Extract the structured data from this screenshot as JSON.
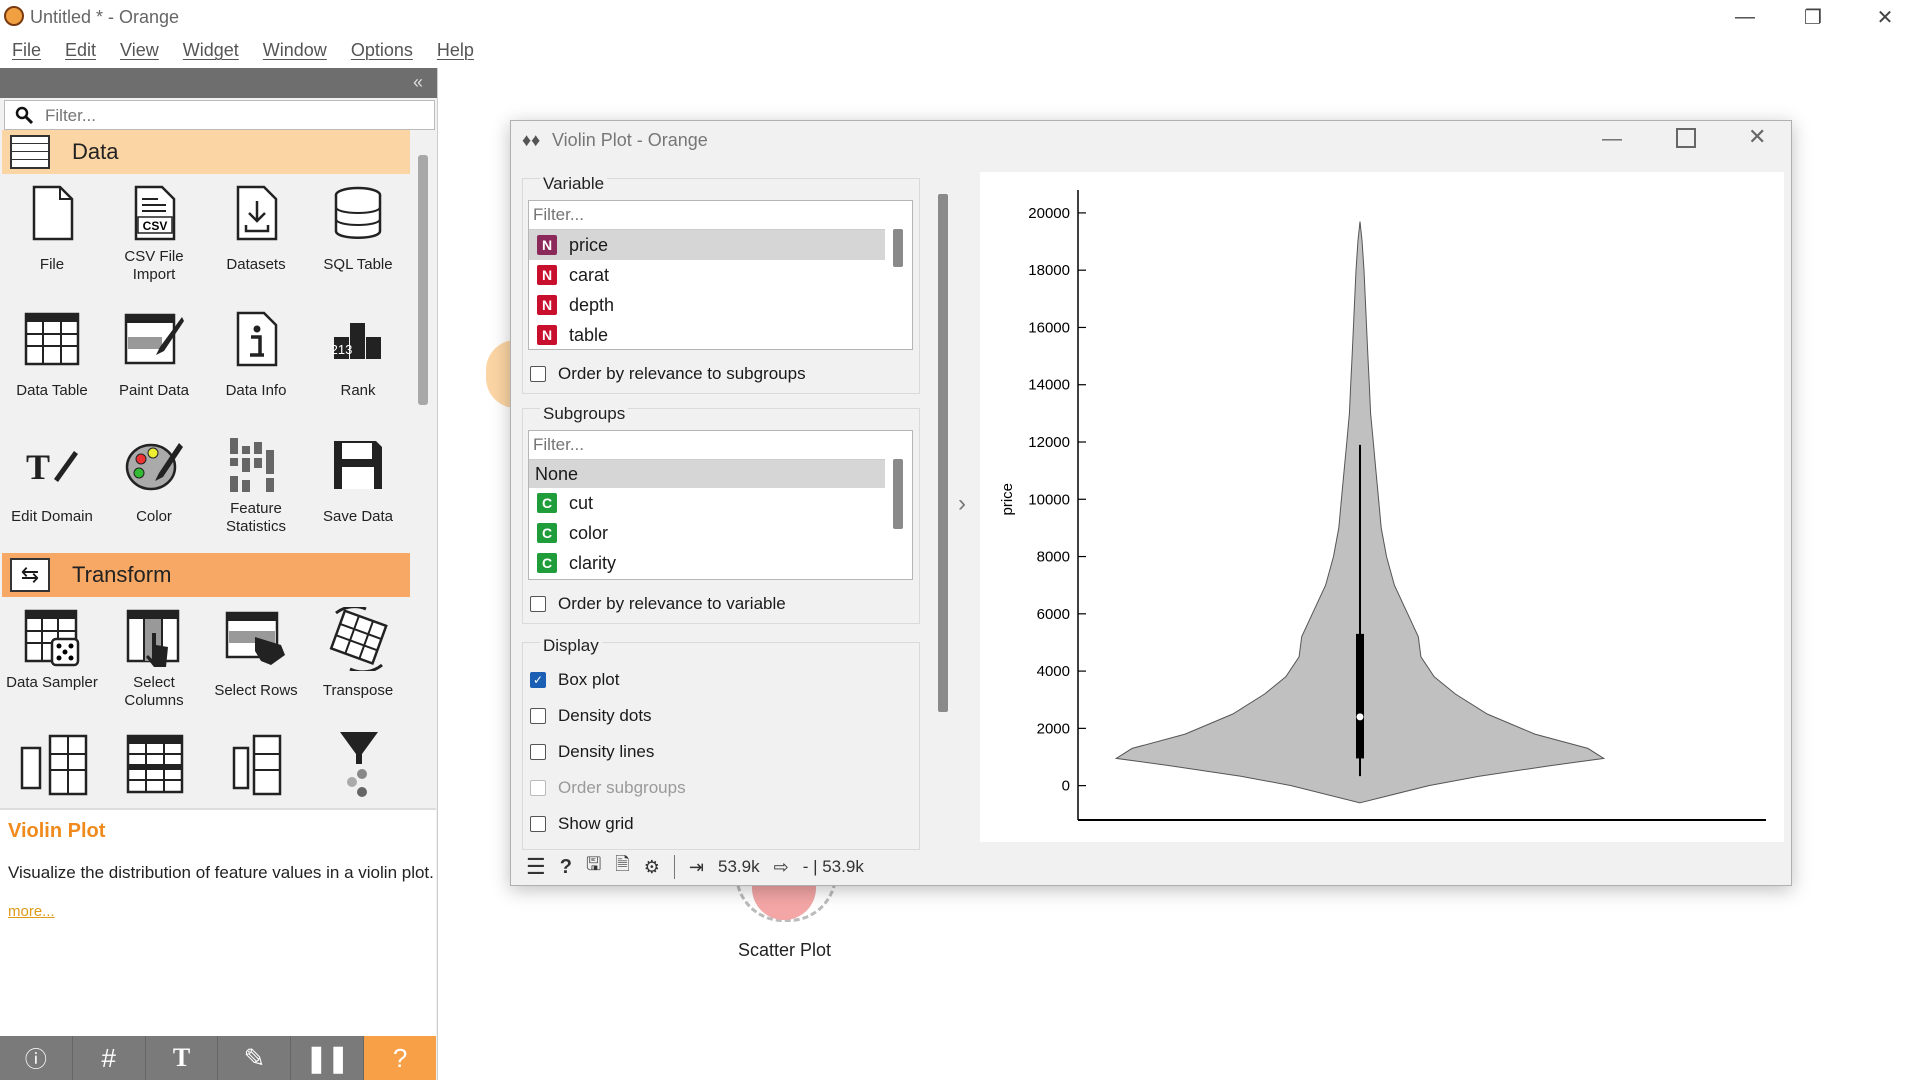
{
  "app": {
    "title": "Untitled * - Orange"
  },
  "menu": [
    "File",
    "Edit",
    "View",
    "Widget",
    "Window",
    "Options",
    "Help"
  ],
  "dock": {
    "filter_placeholder": "Filter...",
    "categories": [
      {
        "label": "Data",
        "color": "#fbd5a4"
      },
      {
        "label": "Transform",
        "color": "#f8a865"
      }
    ],
    "data_widgets": [
      "File",
      "CSV File Import",
      "Datasets",
      "SQL Table",
      "Data Table",
      "Paint Data",
      "Data Info",
      "Rank",
      "Edit Domain",
      "Color",
      "Feature Statistics",
      "Save Data"
    ],
    "transform_widgets": [
      "Data Sampler",
      "Select Columns",
      "Select Rows",
      "Transpose"
    ],
    "rank_digits": "213",
    "help": {
      "title": "Violin Plot",
      "description": "Visualize the distribution of feature values in a violin plot.",
      "more": "more..."
    }
  },
  "canvas": {
    "scatter_label": "Scatter Plot"
  },
  "violin_window": {
    "title": "Violin Plot - Orange",
    "variable": {
      "title": "Variable",
      "filter_placeholder": "Filter...",
      "items": [
        {
          "badge": "N",
          "label": "price",
          "selected": true
        },
        {
          "badge": "N",
          "label": "carat",
          "selected": false
        },
        {
          "badge": "N",
          "label": "depth",
          "selected": false
        },
        {
          "badge": "N",
          "label": "table",
          "selected": false
        }
      ],
      "order_label": "Order by relevance to subgroups"
    },
    "subgroups": {
      "title": "Subgroups",
      "filter_placeholder": "Filter...",
      "none_label": "None",
      "items": [
        {
          "badge": "C",
          "label": "cut"
        },
        {
          "badge": "C",
          "label": "color"
        },
        {
          "badge": "C",
          "label": "clarity"
        }
      ],
      "order_label": "Order by relevance to variable"
    },
    "display": {
      "title": "Display",
      "options": [
        {
          "label": "Box plot",
          "checked": true,
          "enabled": true
        },
        {
          "label": "Density dots",
          "checked": false,
          "enabled": true
        },
        {
          "label": "Density lines",
          "checked": false,
          "enabled": true
        },
        {
          "label": "Order subgroups",
          "checked": false,
          "enabled": false
        },
        {
          "label": "Show grid",
          "checked": false,
          "enabled": true
        }
      ]
    },
    "status": {
      "input_count": "53.9k",
      "output_count": "- | 53.9k"
    }
  },
  "colors": {
    "numeric_badge": "#c8102e",
    "numeric_badge_selected": "#8b2a5a",
    "categorical_badge": "#1f9d3a",
    "violin_fill": "#c0c0c0"
  },
  "chart_data": {
    "type": "violin",
    "ylabel": "price",
    "y_ticks": [
      0,
      2000,
      4000,
      6000,
      8000,
      10000,
      12000,
      14000,
      16000,
      18000,
      20000
    ],
    "ylim": [
      -1200,
      20800
    ],
    "box": {
      "q1": 950,
      "median": 2400,
      "q3": 5300,
      "whisker_low": 330,
      "whisker_high": 11900
    },
    "range": [
      326,
      18823
    ],
    "density_profile": [
      [
        -600,
        0.0
      ],
      [
        0,
        0.26
      ],
      [
        330,
        0.45
      ],
      [
        700,
        0.72
      ],
      [
        950,
        0.92
      ],
      [
        1300,
        0.86
      ],
      [
        1800,
        0.66
      ],
      [
        2500,
        0.48
      ],
      [
        3200,
        0.36
      ],
      [
        3800,
        0.28
      ],
      [
        4500,
        0.23
      ],
      [
        5200,
        0.22
      ],
      [
        6000,
        0.18
      ],
      [
        7000,
        0.13
      ],
      [
        8000,
        0.1
      ],
      [
        9000,
        0.08
      ],
      [
        10000,
        0.07
      ],
      [
        11000,
        0.06
      ],
      [
        12000,
        0.05
      ],
      [
        13000,
        0.04
      ],
      [
        14000,
        0.035
      ],
      [
        15000,
        0.03
      ],
      [
        16000,
        0.025
      ],
      [
        17000,
        0.02
      ],
      [
        18000,
        0.015
      ],
      [
        19000,
        0.008
      ],
      [
        19700,
        0.0
      ]
    ]
  }
}
